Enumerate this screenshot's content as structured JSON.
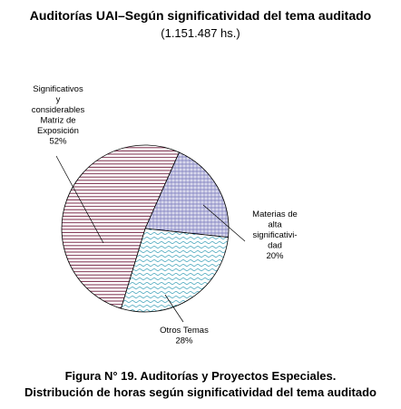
{
  "title": "Auditorías UAI–Según significatividad del tema auditado",
  "subtitle": "(1.151.487 hs.)",
  "caption_line1": "Figura N° 19. Auditorías y Proyectos Especiales.",
  "caption_line2": "Distribución de horas según significatividad del tema auditado",
  "chart_data": {
    "type": "pie",
    "title": "Auditorías UAI–Según significatividad del tema auditado",
    "subtitle": "(1.151.487 hs.)",
    "slices": [
      {
        "label_lines": [
          "Significativos",
          "y",
          "considerables",
          "Matriz de",
          "Exposición"
        ],
        "percent_label": "52%",
        "value": 52,
        "color": "#7a2a4a",
        "pattern": "horizontal-lines"
      },
      {
        "label_lines": [
          "Materias de",
          "alta",
          "significativi-",
          "dad"
        ],
        "percent_label": "20%",
        "value": 20,
        "color": "#5555aa",
        "pattern": "crosshatch"
      },
      {
        "label_lines": [
          "Otros Temas"
        ],
        "percent_label": "28%",
        "value": 28,
        "color": "#3aa0b8",
        "pattern": "wavy"
      }
    ]
  }
}
